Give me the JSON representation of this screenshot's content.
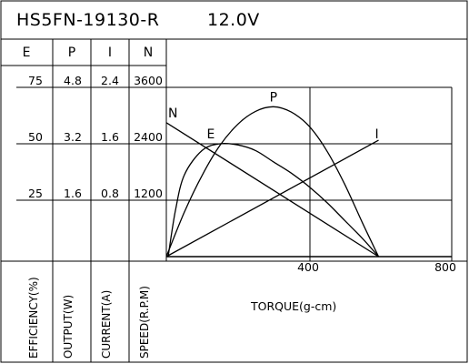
{
  "chart_data": {
    "type": "line",
    "title": "HS5FN-19130-R",
    "subtitle": "12.0V",
    "xlabel": "TORQUE(g-cm)",
    "xlim": [
      0,
      800
    ],
    "x_ticks": [
      "400",
      "800"
    ],
    "scale_table": {
      "columns": [
        {
          "key": "E",
          "header": "E",
          "axis_label": "EFFICIENCY(%)",
          "ticks": [
            "75",
            "50",
            "25"
          ],
          "max": 100
        },
        {
          "key": "P",
          "header": "P",
          "axis_label": "OUTPUT(W)",
          "ticks": [
            "4.8",
            "3.2",
            "1.6"
          ],
          "max": 6.4
        },
        {
          "key": "I",
          "header": "I",
          "axis_label": "CURRENT(A)",
          "ticks": [
            "2.4",
            "1.6",
            "0.8"
          ],
          "max": 3.2
        },
        {
          "key": "N",
          "header": "N",
          "axis_label": "SPEED(R.P.M)",
          "ticks": [
            "3600",
            "2400",
            "1200"
          ],
          "max": 4800
        }
      ]
    },
    "grid": true,
    "series": [
      {
        "name": "N",
        "axis": "N",
        "x": [
          0,
          595
        ],
        "y": [
          2850,
          0
        ]
      },
      {
        "name": "I",
        "axis": "I",
        "x": [
          0,
          595
        ],
        "y": [
          0,
          1.65
        ]
      },
      {
        "name": "P",
        "axis": "P",
        "x": [
          0,
          50,
          100,
          150,
          200,
          250,
          300,
          350,
          400,
          450,
          500,
          550,
          595
        ],
        "y": [
          0,
          1.25,
          2.3,
          3.15,
          3.75,
          4.12,
          4.25,
          4.1,
          3.7,
          3.0,
          2.05,
          0.95,
          0
        ]
      },
      {
        "name": "E",
        "axis": "E",
        "x": [
          5,
          25,
          50,
          100,
          150,
          200,
          250,
          300,
          350,
          400,
          450,
          500,
          550,
          595
        ],
        "y": [
          0,
          20,
          36,
          47,
          50,
          49.5,
          47,
          42,
          37,
          31,
          24,
          16,
          8,
          0
        ]
      }
    ]
  }
}
